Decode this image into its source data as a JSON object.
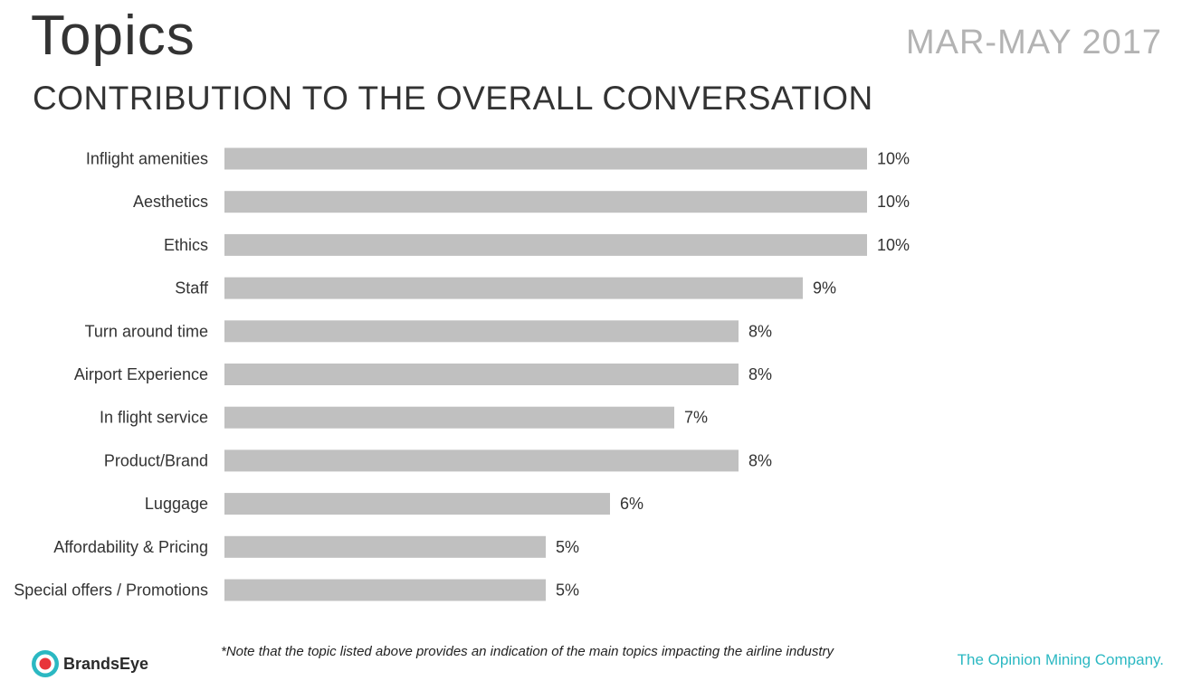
{
  "header": {
    "title": "Topics",
    "date_range": "MAR-MAY 2017",
    "subtitle": "CONTRIBUTION TO THE OVERALL CONVERSATION"
  },
  "chart_data": {
    "type": "bar",
    "orientation": "horizontal",
    "categories": [
      "Inflight amenities",
      "Aesthetics",
      "Ethics",
      "Staff",
      "Turn around time",
      "Airport Experience",
      "In flight service",
      "Product/Brand",
      "Luggage",
      "Affordability & Pricing",
      "Special offers / Promotions"
    ],
    "values": [
      10,
      10,
      10,
      9,
      8,
      8,
      7,
      8,
      6,
      5,
      5
    ],
    "value_labels": [
      "10%",
      "10%",
      "10%",
      "9%",
      "8%",
      "8%",
      "7%",
      "8%",
      "6%",
      "5%",
      "5%"
    ],
    "unit": "%",
    "xlim": [
      0,
      10
    ],
    "grid": false,
    "bar_color": "#c0c0c0"
  },
  "footer": {
    "brand": "BrandsEye",
    "note": "*Note that the topic listed above provides an indication of the main topics impacting the airline industry",
    "tagline": "The Opinion Mining Company."
  },
  "colors": {
    "accent": "#2bb8c2",
    "logo_red": "#e8343a"
  },
  "icons": {
    "logo": "brandseye-target-icon"
  }
}
